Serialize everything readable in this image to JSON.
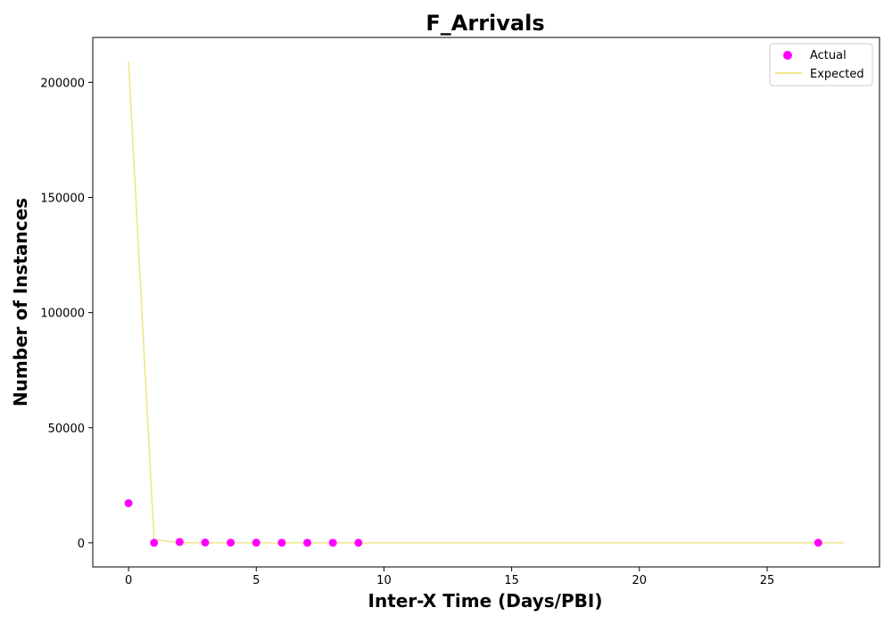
{
  "chart_data": {
    "type": "scatter",
    "title": "F_Arrivals",
    "xlabel": "Inter-X Time (Days/PBI)",
    "ylabel": "Number of Instances",
    "xlim": [
      -1.4,
      29.4
    ],
    "ylim": [
      -10500,
      219500
    ],
    "xticks": [
      0,
      5,
      10,
      15,
      20,
      25
    ],
    "yticks": [
      0,
      50000,
      100000,
      150000,
      200000
    ],
    "xtick_labels": [
      "0",
      "5",
      "10",
      "15",
      "20",
      "25"
    ],
    "ytick_labels": [
      "0",
      "50000",
      "100000",
      "150000",
      "200000"
    ],
    "legend_position": "top-right",
    "grid": false,
    "series": [
      {
        "name": "Actual",
        "kind": "scatter",
        "color": "#ff00ff",
        "x": [
          0,
          1,
          2,
          3,
          4,
          5,
          6,
          7,
          8,
          9,
          27
        ],
        "y": [
          17200,
          0,
          350,
          100,
          50,
          30,
          20,
          15,
          10,
          5,
          1
        ]
      },
      {
        "name": "Expected",
        "kind": "line",
        "color": "#f0e68c",
        "x": [
          0,
          1,
          2,
          3,
          4,
          5,
          6,
          7,
          8,
          9,
          10,
          11,
          12,
          13,
          14,
          15,
          16,
          17,
          18,
          19,
          20,
          21,
          22,
          23,
          24,
          25,
          26,
          27,
          28
        ],
        "y": [
          209000,
          1400,
          10,
          0,
          0,
          0,
          0,
          0,
          0,
          0,
          0,
          0,
          0,
          0,
          0,
          0,
          0,
          0,
          0,
          0,
          0,
          0,
          0,
          0,
          0,
          0,
          0,
          0,
          0
        ]
      }
    ]
  }
}
